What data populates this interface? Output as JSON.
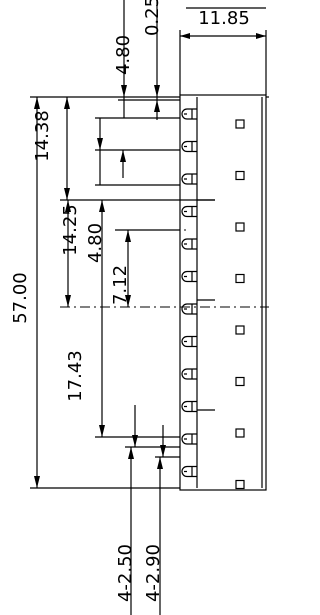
{
  "dimensions": [
    "11.85",
    "0.25",
    "4.80",
    "14.38",
    "57.00",
    "14.25",
    "4.80",
    "7.12",
    "17.43",
    "4-2.50",
    "4-2.90"
  ]
}
